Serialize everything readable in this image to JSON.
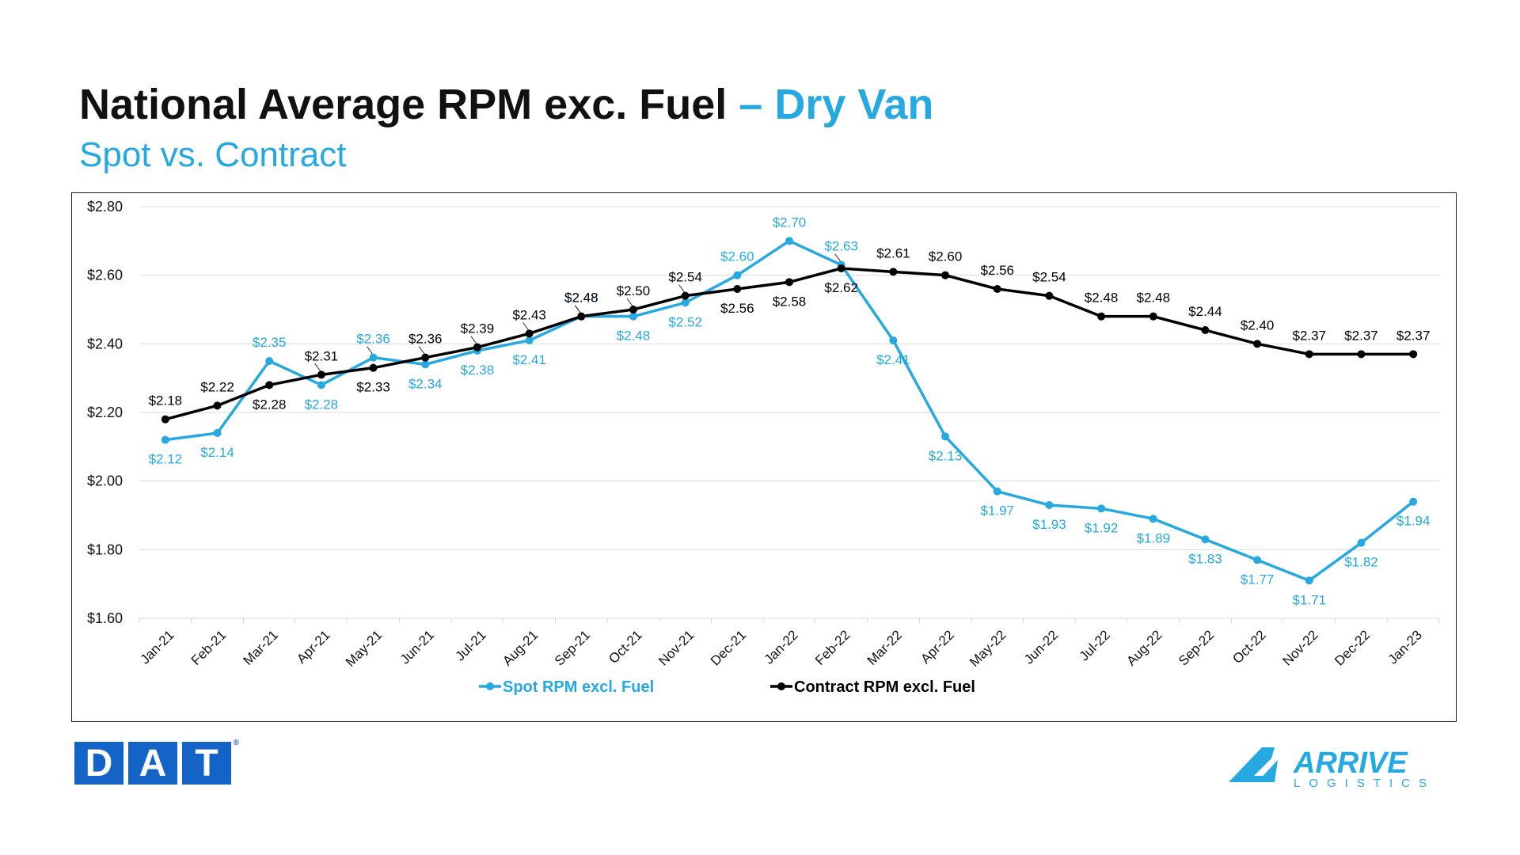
{
  "header": {
    "title_main": "National Average RPM exc. Fuel",
    "title_accent": "– Dry Van",
    "subtitle": "Spot vs. Contract"
  },
  "colors": {
    "spot": "#25a9e0",
    "contract": "#000000",
    "grid": "#d9d9d9",
    "dat_blue": "#1464c8",
    "arrive_blue": "#25a9e0"
  },
  "chart_data": {
    "type": "line",
    "categories": [
      "Jan-21",
      "Feb-21",
      "Mar-21",
      "Apr-21",
      "May-21",
      "Jun-21",
      "Jul-21",
      "Aug-21",
      "Sep-21",
      "Oct-21",
      "Nov-21",
      "Dec-21",
      "Jan-22",
      "Feb-22",
      "Mar-22",
      "Apr-22",
      "May-22",
      "Jun-22",
      "Jul-22",
      "Aug-22",
      "Sep-22",
      "Oct-22",
      "Nov-22",
      "Dec-22",
      "Jan-23"
    ],
    "series": [
      {
        "name": "Spot RPM excl. Fuel",
        "values": [
          2.12,
          2.14,
          2.35,
          2.28,
          2.36,
          2.34,
          2.38,
          2.41,
          2.48,
          2.48,
          2.52,
          2.6,
          2.7,
          2.63,
          2.41,
          2.13,
          1.97,
          1.93,
          1.92,
          1.89,
          1.83,
          1.77,
          1.71,
          1.82,
          1.94
        ],
        "labels": [
          "$2.12",
          "$2.14",
          "$2.35",
          "$2.28",
          "$2.36",
          "$2.34",
          "$2.38",
          "$2.41",
          "$2.48",
          "$2.48",
          "$2.52",
          "$2.60",
          "$2.70",
          "$2.63",
          "$2.41",
          "$2.13",
          "$1.97",
          "$1.93",
          "$1.92",
          "$1.89",
          "$1.83",
          "$1.77",
          "$1.71",
          "$1.82",
          "$1.94"
        ]
      },
      {
        "name": "Contract RPM excl. Fuel",
        "values": [
          2.18,
          2.22,
          2.28,
          2.31,
          2.33,
          2.36,
          2.39,
          2.43,
          2.48,
          2.5,
          2.54,
          2.56,
          2.58,
          2.62,
          2.61,
          2.6,
          2.56,
          2.54,
          2.48,
          2.48,
          2.44,
          2.4,
          2.37,
          2.37,
          2.37
        ],
        "labels": [
          "$2.18",
          "$2.22",
          "$2.28",
          "$2.31",
          "$2.33",
          "$2.36",
          "$2.39",
          "$2.43",
          "$2.48",
          "$2.50",
          "$2.54",
          "$2.56",
          "$2.58",
          "$2.62",
          "$2.61",
          "$2.60",
          "$2.56",
          "$2.54",
          "$2.48",
          "$2.48",
          "$2.44",
          "$2.40",
          "$2.37",
          "$2.37",
          "$2.37"
        ]
      }
    ],
    "ylim": [
      1.6,
      2.8
    ],
    "yticks": [
      {
        "value": 2.8,
        "label": "$2.80"
      },
      {
        "value": 2.6,
        "label": "$2.60"
      },
      {
        "value": 2.4,
        "label": "$2.40"
      },
      {
        "value": 2.2,
        "label": "$2.20"
      },
      {
        "value": 2.0,
        "label": "$2.00"
      },
      {
        "value": 1.8,
        "label": "$1.80"
      },
      {
        "value": 1.6,
        "label": "$1.60"
      }
    ],
    "grid": true,
    "legend": "bottom"
  },
  "logos": {
    "dat_letters": [
      "D",
      "A",
      "T"
    ],
    "dat_mark": "®",
    "arrive_name": "ARRIVE",
    "arrive_sub": "LOGISTICS"
  }
}
